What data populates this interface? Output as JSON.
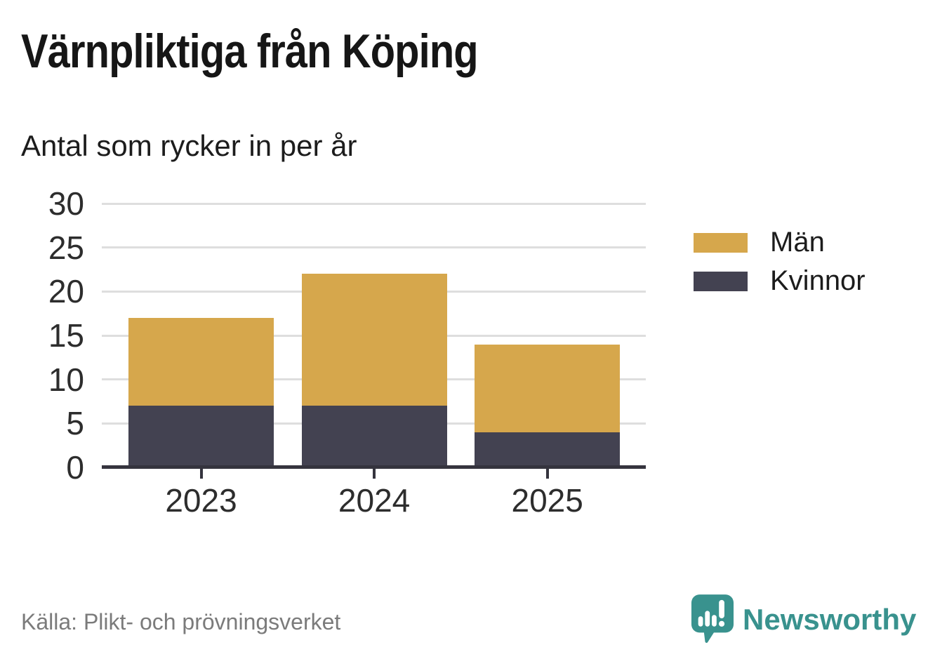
{
  "header": {
    "title": "Värnpliktiga från Köping",
    "subtitle": "Antal som rycker in per år"
  },
  "footer": {
    "source": "Källa: Plikt- och prövningsverket",
    "brand": "Newsworthy"
  },
  "colors": {
    "men": "#d6a74c",
    "women": "#434251",
    "axis": "#35343e",
    "gridline": "#dedede",
    "tick_label": "#2d2d2d",
    "title_text": "#161616",
    "source_text": "#7b7b7b",
    "brand_teal": "#39928e"
  },
  "icons": {
    "brand_icon": "newsworthy-chart-bubble-icon"
  },
  "chart_data": {
    "type": "bar",
    "stacked": true,
    "title": "Värnpliktiga från Köping",
    "subtitle": "Antal som rycker in per år",
    "xlabel": "",
    "ylabel": "",
    "categories": [
      "2023",
      "2024",
      "2025"
    ],
    "series": [
      {
        "name": "Män",
        "color": "#d6a74c",
        "values": [
          10,
          15,
          10
        ]
      },
      {
        "name": "Kvinnor",
        "color": "#434251",
        "values": [
          7,
          7,
          4
        ]
      }
    ],
    "totals": [
      17,
      22,
      14
    ],
    "ylim": [
      0,
      30
    ],
    "yticks": [
      0,
      5,
      10,
      15,
      20,
      25,
      30
    ],
    "grid": "horizontal",
    "legend_position": "right"
  }
}
